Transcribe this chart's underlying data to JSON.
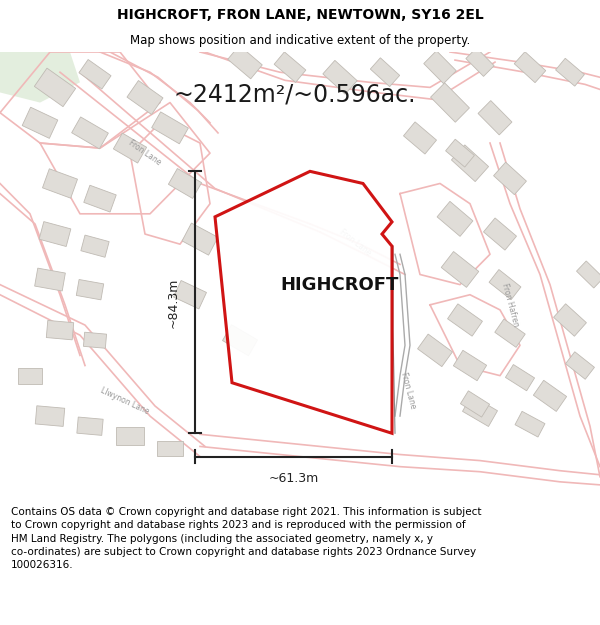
{
  "title_line1": "HIGHCROFT, FRON LANE, NEWTOWN, SY16 2EL",
  "title_line2": "Map shows position and indicative extent of the property.",
  "area_text": "~2412m²/~0.596ac.",
  "property_label": "HIGHCROFT",
  "dim_vertical": "~84.3m",
  "dim_horizontal": "~61.3m",
  "footer_text": "Contains OS data © Crown copyright and database right 2021. This information is subject to Crown copyright and database rights 2023 and is reproduced with the permission of HM Land Registry. The polygons (including the associated geometry, namely x, y co-ordinates) are subject to Crown copyright and database rights 2023 Ordnance Survey 100026316.",
  "map_bg": "#f5f3f0",
  "title_bg": "#ffffff",
  "footer_bg": "#ffffff",
  "polygon_color": "#cc0000",
  "road_color_light": "#f0b8b8",
  "road_color_dark": "#d08080",
  "dim_color": "#222222",
  "building_fill": "#e0ddd8",
  "building_edge": "#c0bbb4",
  "building_fill2": "#d8d4cf",
  "green_patch": "#d8e8d0",
  "title_font_size": 10,
  "subtitle_font_size": 8.5,
  "area_font_size": 17,
  "label_font_size": 13,
  "dim_font_size": 9,
  "footer_font_size": 7.5
}
